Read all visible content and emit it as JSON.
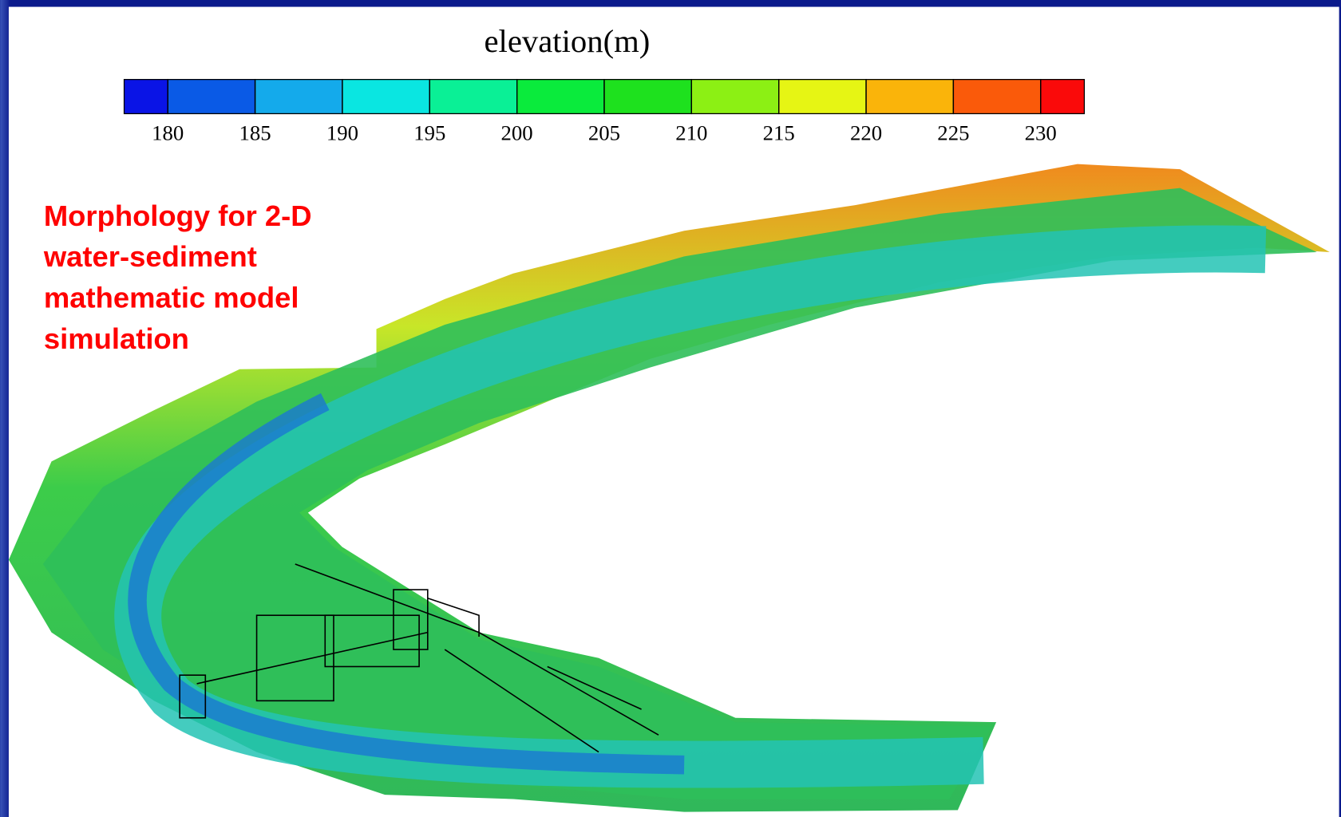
{
  "colorbar": {
    "title": "elevation(m)",
    "lim": [
      177.5,
      232.5
    ],
    "ticks": [
      180,
      185,
      190,
      195,
      200,
      205,
      210,
      215,
      220,
      225,
      230
    ],
    "colors": [
      "#0a14e6",
      "#0a5ae6",
      "#14aaeb",
      "#0ae6e1",
      "#0af096",
      "#0aeb3c",
      "#1ee11e",
      "#8cf014",
      "#e6f514",
      "#fab40a",
      "#fa5a0a",
      "#fa0a0a"
    ]
  },
  "annotation": {
    "lines": [
      "Morphology for 2-D",
      "water-sediment",
      "mathematic model",
      "simulation"
    ]
  }
}
